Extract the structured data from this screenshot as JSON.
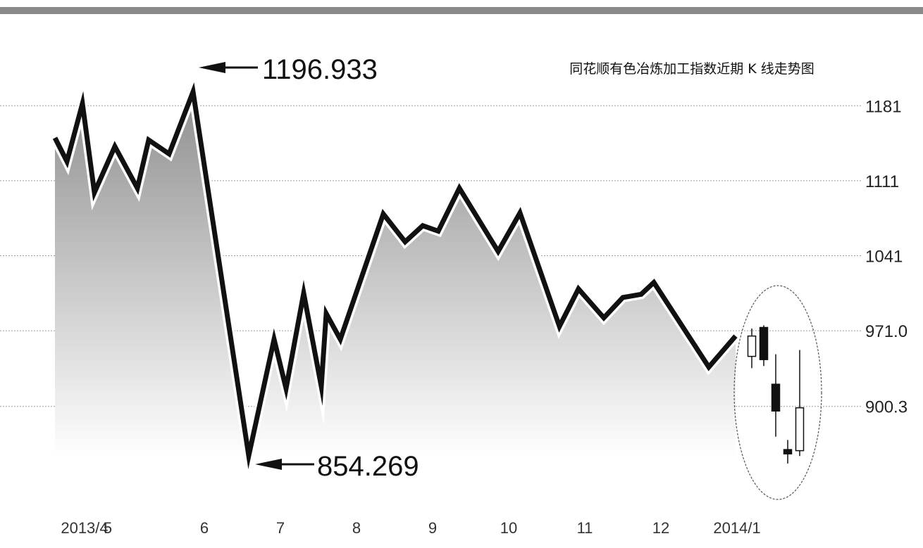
{
  "chart_data": {
    "type": "line",
    "title": "同花顺有色冶炼加工指数近期 K 线走势图",
    "x_tick_labels": [
      "2013/4",
      "5",
      "6",
      "7",
      "8",
      "9",
      "10",
      "11",
      "12",
      "2014/1"
    ],
    "y_tick_labels": [
      "1181",
      "1111",
      "1041",
      "971.0",
      "900.3"
    ],
    "y_ticks": [
      1181,
      1111,
      1041,
      971.0,
      900.3
    ],
    "ylim": [
      820,
      1260
    ],
    "grid": true,
    "series": [
      {
        "values": [
          1151,
          1129,
          1183,
          1100,
          1143,
          1104,
          1149,
          1136,
          1194,
          854.3,
          963,
          917,
          1006,
          919,
          987,
          963,
          1080,
          1054,
          1069,
          1064,
          1104,
          1045,
          1081,
          975,
          1010,
          983,
          1002,
          1005,
          1016,
          937,
          966
        ]
      }
    ],
    "candlesticks": [
      {
        "open": 947,
        "close": 966,
        "high": 973,
        "low": 936
      },
      {
        "open": 974,
        "close": 944,
        "high": 976,
        "low": 938
      },
      {
        "open": 921,
        "close": 896,
        "high": 949,
        "low": 872
      },
      {
        "open": 860,
        "close": 856,
        "high": 869,
        "low": 847
      },
      {
        "open": 859,
        "close": 899,
        "high": 953,
        "low": 854
      }
    ],
    "annotations": [
      {
        "text": "1196.933",
        "value": 1196.933,
        "target": "max"
      },
      {
        "text": "854.269",
        "value": 854.269,
        "target": "min"
      }
    ]
  },
  "colors": {
    "line": "#111111",
    "line_halo": "#ffffff",
    "fill_top": "#8f8f8f",
    "fill_bottom": "#ffffff",
    "grid": "#9a9a9a",
    "candle_up": "#ffffff",
    "candle_down": "#111111",
    "top_bar": "#8a8a8a"
  }
}
